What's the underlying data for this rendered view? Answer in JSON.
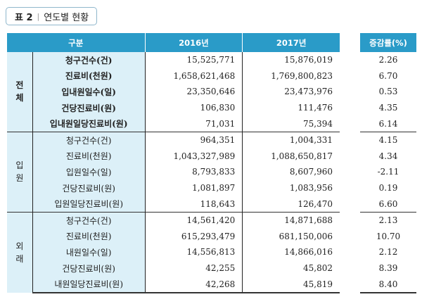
{
  "title": {
    "prefix": "표 2",
    "divider": "|",
    "text": "연도별 현황"
  },
  "headers": {
    "category": "구분",
    "y2016": "2016년",
    "y2017": "2017년",
    "change": "증감률(%)"
  },
  "groups": [
    {
      "name": "전\n체",
      "rows": [
        {
          "label": "청구건수(건)",
          "y2016": "15,525,771",
          "y2017": "15,876,019",
          "change": "2.26"
        },
        {
          "label": "진료비(천원)",
          "y2016": "1,658,621,468",
          "y2017": "1,769,800,823",
          "change": "6.70"
        },
        {
          "label": "입내원일수(일)",
          "y2016": "23,350,646",
          "y2017": "23,473,976",
          "change": "0.53"
        },
        {
          "label": "건당진료비(원)",
          "y2016": "106,830",
          "y2017": "111,476",
          "change": "4.35"
        },
        {
          "label": "입내원일당진료비(원)",
          "y2016": "71,031",
          "y2017": "75,394",
          "change": "6.14"
        }
      ]
    },
    {
      "name": "입\n원",
      "rows": [
        {
          "label": "청구건수(건)",
          "y2016": "964,351",
          "y2017": "1,004,331",
          "change": "4.15"
        },
        {
          "label": "진료비(천원)",
          "y2016": "1,043,327,989",
          "y2017": "1,088,650,817",
          "change": "4.34"
        },
        {
          "label": "입원일수(일)",
          "y2016": "8,793,833",
          "y2017": "8,607,960",
          "change": "-2.11"
        },
        {
          "label": "건당진료비(원)",
          "y2016": "1,081,897",
          "y2017": "1,083,956",
          "change": "0.19"
        },
        {
          "label": "입원일당진료비(원)",
          "y2016": "118,643",
          "y2017": "126,470",
          "change": "6.60"
        }
      ]
    },
    {
      "name": "외\n래",
      "rows": [
        {
          "label": "청구건수(건)",
          "y2016": "14,561,420",
          "y2017": "14,871,688",
          "change": "2.13"
        },
        {
          "label": "진료비(천원)",
          "y2016": "615,293,479",
          "y2017": "681,150,006",
          "change": "10.70"
        },
        {
          "label": "내원일수(일)",
          "y2016": "14,556,813",
          "y2017": "14,866,016",
          "change": "2.12"
        },
        {
          "label": "건당진료비(원)",
          "y2016": "42,255",
          "y2017": "45,802",
          "change": "8.39"
        },
        {
          "label": "내원일당진료비(원)",
          "y2016": "42,268",
          "y2017": "45,819",
          "change": "8.40"
        }
      ]
    }
  ]
}
